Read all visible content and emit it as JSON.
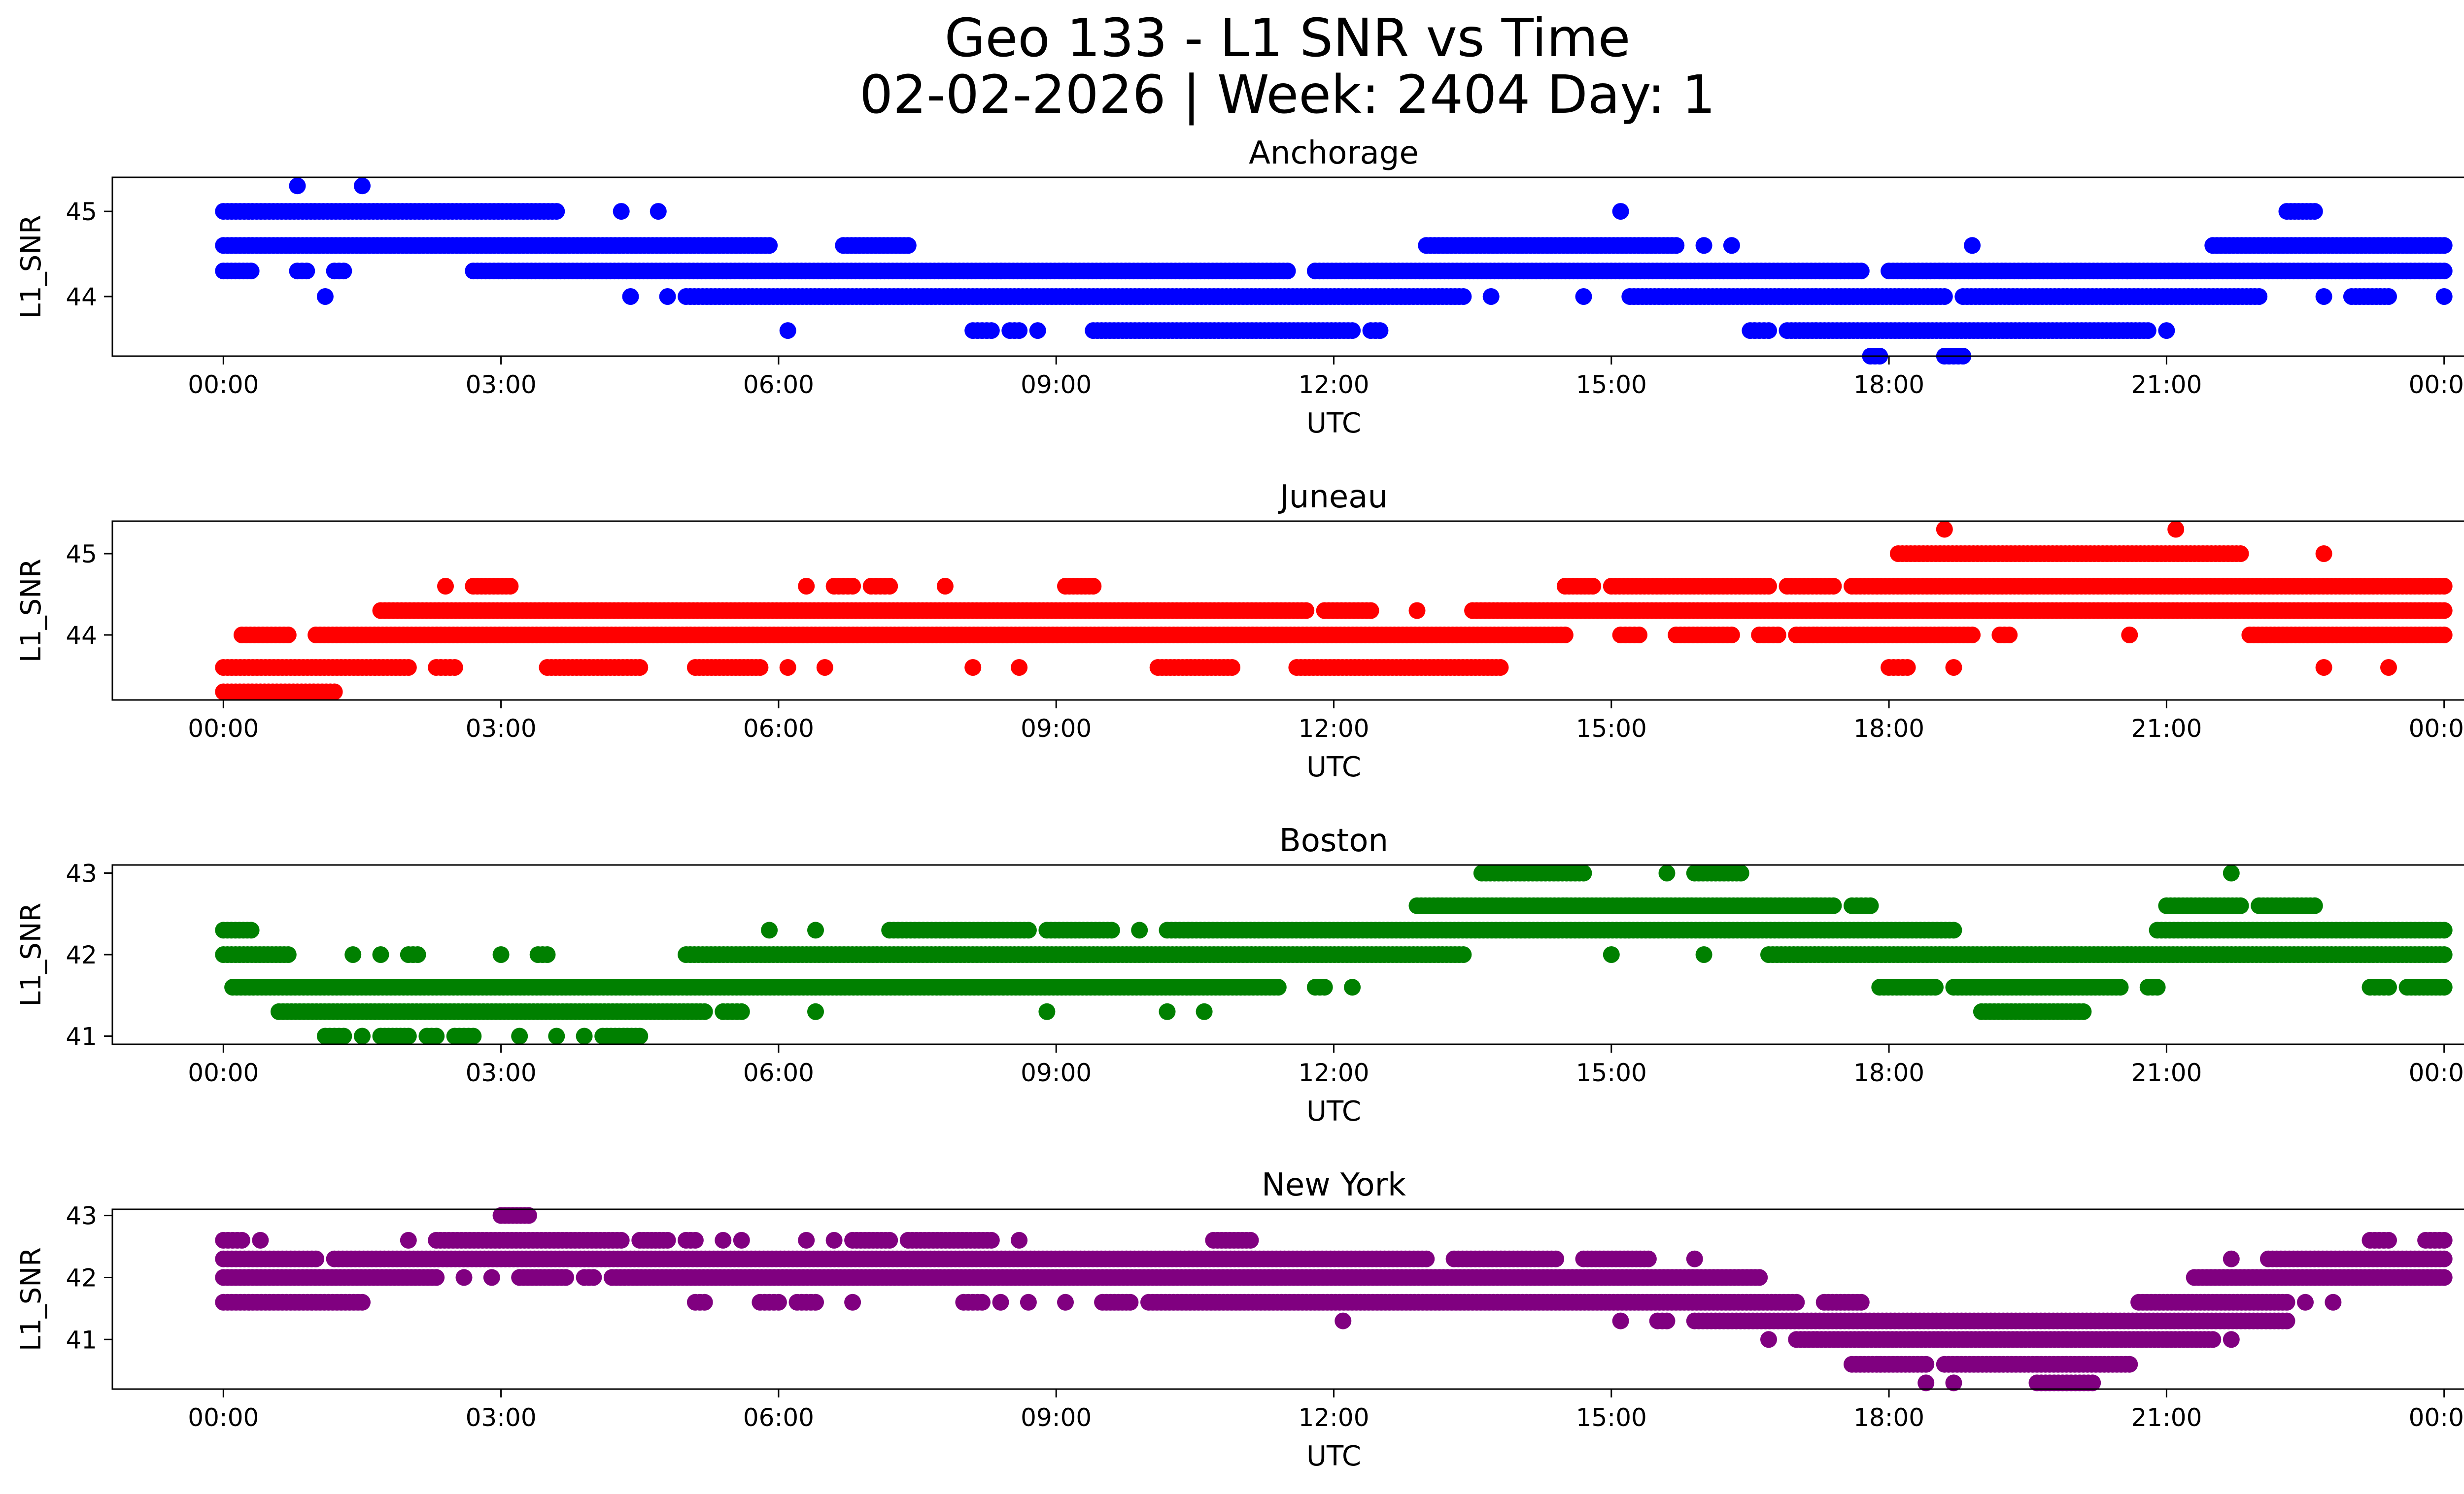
{
  "figure": {
    "title_line1": "Geo 133 - L1 SNR vs Time",
    "title_line2": "02-02-2026 | Week: 2404 Day: 1"
  },
  "chart_data": [
    {
      "type": "scatter",
      "title": "Anchorage",
      "xlabel": "UTC",
      "ylabel": "L1_SNR",
      "color": "#0000ff",
      "xlim_hours": [
        -1.2,
        25.2
      ],
      "ylim": [
        43.3,
        45.4
      ],
      "xticks": [
        0,
        3,
        6,
        9,
        12,
        15,
        18,
        21,
        24
      ],
      "xtick_labels": [
        "00:00",
        "03:00",
        "06:00",
        "09:00",
        "12:00",
        "15:00",
        "18:00",
        "21:00",
        "00:00"
      ],
      "yticks": [
        44,
        45
      ],
      "ytick_labels": [
        "44",
        "45"
      ],
      "runs": [
        [
          45.0,
          0.0,
          3.6
        ],
        [
          44.6,
          0.0,
          5.9
        ],
        [
          44.3,
          0.0,
          0.3
        ],
        [
          44.3,
          0.8,
          0.9
        ],
        [
          44.3,
          1.2,
          1.3
        ],
        [
          44.3,
          2.7,
          11.5
        ],
        [
          44.3,
          11.8,
          17.7
        ],
        [
          44.3,
          18.0,
          24.0
        ],
        [
          44.0,
          1.1,
          1.1
        ],
        [
          44.0,
          4.4,
          4.4
        ],
        [
          44.0,
          4.8,
          4.8
        ],
        [
          44.0,
          5.0,
          13.4
        ],
        [
          44.0,
          13.7,
          13.7
        ],
        [
          44.0,
          14.7,
          14.7
        ],
        [
          44.0,
          15.2,
          18.6
        ],
        [
          44.0,
          18.8,
          22.0
        ],
        [
          44.0,
          22.7,
          22.7
        ],
        [
          44.0,
          23.0,
          23.4
        ],
        [
          44.0,
          24.0,
          24.0
        ],
        [
          43.6,
          6.1,
          6.1
        ],
        [
          43.6,
          8.1,
          8.3
        ],
        [
          43.6,
          8.5,
          8.6
        ],
        [
          43.6,
          8.8,
          8.8
        ],
        [
          43.6,
          9.4,
          12.2
        ],
        [
          43.6,
          12.4,
          12.5
        ],
        [
          43.6,
          16.5,
          16.7
        ],
        [
          43.6,
          16.9,
          20.8
        ],
        [
          43.6,
          21.0,
          21.0
        ],
        [
          43.3,
          17.8,
          17.9
        ],
        [
          43.3,
          18.6,
          18.8
        ],
        [
          45.3,
          0.8,
          0.8
        ],
        [
          45.3,
          1.5,
          1.5
        ],
        [
          45.0,
          4.3,
          4.3
        ],
        [
          45.0,
          4.7,
          4.7
        ],
        [
          45.0,
          15.1,
          15.1
        ],
        [
          45.0,
          22.3,
          22.6
        ],
        [
          44.6,
          6.7,
          7.4
        ],
        [
          44.6,
          13.0,
          15.7
        ],
        [
          44.6,
          16.0,
          16.0
        ],
        [
          44.6,
          16.3,
          16.3
        ],
        [
          44.6,
          18.9,
          18.9
        ],
        [
          44.6,
          21.5,
          24.0
        ]
      ]
    },
    {
      "type": "scatter",
      "title": "Juneau",
      "xlabel": "UTC",
      "ylabel": "L1_SNR",
      "color": "#ff0000",
      "xlim_hours": [
        -1.2,
        25.2
      ],
      "ylim": [
        43.2,
        45.4
      ],
      "xticks": [
        0,
        3,
        6,
        9,
        12,
        15,
        18,
        21,
        24
      ],
      "xtick_labels": [
        "00:00",
        "03:00",
        "06:00",
        "09:00",
        "12:00",
        "15:00",
        "18:00",
        "21:00",
        "00:00"
      ],
      "yticks": [
        44,
        45
      ],
      "ytick_labels": [
        "44",
        "45"
      ],
      "runs": [
        [
          43.3,
          0.0,
          1.2
        ],
        [
          43.6,
          0.0,
          2.0
        ],
        [
          43.6,
          2.3,
          2.5
        ],
        [
          43.6,
          3.5,
          4.5
        ],
        [
          43.6,
          5.1,
          5.8
        ],
        [
          43.6,
          6.1,
          6.1
        ],
        [
          43.6,
          6.5,
          6.5
        ],
        [
          43.6,
          8.1,
          8.1
        ],
        [
          43.6,
          8.6,
          8.6
        ],
        [
          43.6,
          10.1,
          10.9
        ],
        [
          43.6,
          11.6,
          13.8
        ],
        [
          43.6,
          18.0,
          18.2
        ],
        [
          43.6,
          18.7,
          18.7
        ],
        [
          43.6,
          22.7,
          22.7
        ],
        [
          43.6,
          23.4,
          23.4
        ],
        [
          44.0,
          0.2,
          0.7
        ],
        [
          44.0,
          1.0,
          14.5
        ],
        [
          44.0,
          15.1,
          15.3
        ],
        [
          44.0,
          15.7,
          16.3
        ],
        [
          44.0,
          16.6,
          16.8
        ],
        [
          44.0,
          17.0,
          18.9
        ],
        [
          44.0,
          19.2,
          19.3
        ],
        [
          44.0,
          20.6,
          20.6
        ],
        [
          44.0,
          21.9,
          24.0
        ],
        [
          44.3,
          1.7,
          11.7
        ],
        [
          44.3,
          11.9,
          12.4
        ],
        [
          44.3,
          12.9,
          12.9
        ],
        [
          44.3,
          13.5,
          24.0
        ],
        [
          44.6,
          2.4,
          2.4
        ],
        [
          44.6,
          2.7,
          3.1
        ],
        [
          44.6,
          6.3,
          6.3
        ],
        [
          44.6,
          6.6,
          6.8
        ],
        [
          44.6,
          7.0,
          7.2
        ],
        [
          44.6,
          7.8,
          7.8
        ],
        [
          44.6,
          9.1,
          9.4
        ],
        [
          44.6,
          14.5,
          14.8
        ],
        [
          44.6,
          15.0,
          16.7
        ],
        [
          44.6,
          16.9,
          17.4
        ],
        [
          44.6,
          17.6,
          24.0
        ],
        [
          45.0,
          18.1,
          21.8
        ],
        [
          45.0,
          22.7,
          22.7
        ],
        [
          45.3,
          18.6,
          18.6
        ],
        [
          45.3,
          21.1,
          21.1
        ]
      ]
    },
    {
      "type": "scatter",
      "title": "Boston",
      "xlabel": "UTC",
      "ylabel": "L1_SNR",
      "color": "#008000",
      "xlim_hours": [
        -1.2,
        25.2
      ],
      "ylim": [
        40.9,
        43.1
      ],
      "xticks": [
        0,
        3,
        6,
        9,
        12,
        15,
        18,
        21,
        24
      ],
      "xtick_labels": [
        "00:00",
        "03:00",
        "06:00",
        "09:00",
        "12:00",
        "15:00",
        "18:00",
        "21:00",
        "00:00"
      ],
      "yticks": [
        41,
        42,
        43
      ],
      "ytick_labels": [
        "41",
        "42",
        "43"
      ],
      "runs": [
        [
          42.3,
          0.0,
          0.3
        ],
        [
          42.0,
          0.0,
          0.7
        ],
        [
          42.0,
          1.4,
          1.4
        ],
        [
          42.0,
          1.7,
          1.7
        ],
        [
          42.0,
          2.0,
          2.1
        ],
        [
          42.0,
          3.0,
          3.0
        ],
        [
          42.0,
          3.4,
          3.5
        ],
        [
          41.6,
          0.1,
          11.4
        ],
        [
          41.3,
          0.6,
          5.2
        ],
        [
          41.0,
          1.1,
          1.3
        ],
        [
          41.0,
          1.5,
          1.5
        ],
        [
          41.0,
          1.7,
          2.0
        ],
        [
          41.0,
          2.2,
          2.3
        ],
        [
          41.0,
          2.5,
          2.7
        ],
        [
          41.0,
          3.2,
          3.2
        ],
        [
          41.0,
          3.6,
          3.6
        ],
        [
          41.0,
          3.9,
          3.9
        ],
        [
          41.0,
          4.1,
          4.5
        ],
        [
          41.3,
          5.4,
          5.6
        ],
        [
          41.3,
          6.4,
          6.4
        ],
        [
          41.3,
          8.9,
          8.9
        ],
        [
          41.3,
          10.2,
          10.2
        ],
        [
          41.3,
          10.6,
          10.6
        ],
        [
          41.6,
          11.8,
          11.9
        ],
        [
          41.6,
          12.2,
          12.2
        ],
        [
          42.0,
          5.0,
          13.4
        ],
        [
          42.0,
          15.0,
          15.0
        ],
        [
          42.0,
          16.0,
          16.0
        ],
        [
          42.0,
          16.7,
          24.0
        ],
        [
          42.3,
          5.9,
          5.9
        ],
        [
          42.3,
          6.4,
          6.4
        ],
        [
          42.3,
          7.2,
          8.7
        ],
        [
          42.3,
          8.9,
          9.6
        ],
        [
          42.3,
          9.9,
          9.9
        ],
        [
          42.3,
          10.2,
          18.7
        ],
        [
          42.3,
          20.9,
          24.0
        ],
        [
          42.6,
          12.9,
          17.4
        ],
        [
          42.6,
          17.6,
          17.8
        ],
        [
          42.6,
          21.0,
          21.8
        ],
        [
          42.6,
          22.0,
          22.6
        ],
        [
          43.0,
          13.6,
          14.7
        ],
        [
          43.0,
          15.6,
          15.6
        ],
        [
          43.0,
          15.9,
          16.4
        ],
        [
          43.0,
          21.7,
          21.7
        ],
        [
          41.6,
          17.9,
          18.5
        ],
        [
          41.6,
          18.7,
          20.5
        ],
        [
          41.6,
          20.8,
          20.9
        ],
        [
          41.6,
          23.2,
          23.4
        ],
        [
          41.6,
          23.6,
          24.0
        ],
        [
          41.3,
          19.0,
          20.1
        ]
      ]
    },
    {
      "type": "scatter",
      "title": "New York",
      "xlabel": "UTC",
      "ylabel": "L1_SNR",
      "color": "#800080",
      "xlim_hours": [
        -1.2,
        25.2
      ],
      "ylim": [
        40.2,
        43.1
      ],
      "xticks": [
        0,
        3,
        6,
        9,
        12,
        15,
        18,
        21,
        24
      ],
      "xtick_labels": [
        "00:00",
        "03:00",
        "06:00",
        "09:00",
        "12:00",
        "15:00",
        "18:00",
        "21:00",
        "00:00"
      ],
      "yticks": [
        41,
        42,
        43
      ],
      "ytick_labels": [
        "41",
        "42",
        "43"
      ],
      "runs": [
        [
          42.6,
          0.0,
          0.2
        ],
        [
          42.6,
          0.4,
          0.4
        ],
        [
          42.6,
          2.0,
          2.0
        ],
        [
          42.6,
          2.3,
          4.3
        ],
        [
          42.6,
          4.5,
          4.8
        ],
        [
          42.6,
          5.0,
          5.1
        ],
        [
          42.6,
          5.4,
          5.4
        ],
        [
          42.6,
          5.6,
          5.6
        ],
        [
          42.6,
          6.3,
          6.3
        ],
        [
          42.6,
          6.6,
          6.6
        ],
        [
          42.6,
          6.8,
          7.2
        ],
        [
          42.6,
          7.4,
          8.3
        ],
        [
          42.6,
          8.6,
          8.6
        ],
        [
          42.6,
          10.7,
          11.1
        ],
        [
          42.6,
          23.2,
          23.4
        ],
        [
          42.6,
          23.8,
          24.0
        ],
        [
          42.3,
          0.0,
          1.0
        ],
        [
          42.3,
          1.2,
          13.0
        ],
        [
          42.3,
          13.3,
          14.4
        ],
        [
          42.3,
          14.7,
          15.4
        ],
        [
          42.3,
          15.9,
          15.9
        ],
        [
          42.3,
          21.7,
          21.7
        ],
        [
          42.3,
          22.1,
          24.0
        ],
        [
          42.0,
          0.0,
          2.3
        ],
        [
          42.0,
          2.6,
          2.6
        ],
        [
          42.0,
          2.9,
          2.9
        ],
        [
          42.0,
          3.2,
          3.7
        ],
        [
          42.0,
          3.9,
          4.0
        ],
        [
          42.0,
          4.2,
          16.6
        ],
        [
          42.0,
          21.3,
          24.0
        ],
        [
          41.6,
          0.0,
          1.5
        ],
        [
          41.6,
          5.1,
          5.2
        ],
        [
          41.6,
          5.8,
          6.0
        ],
        [
          41.6,
          6.2,
          6.4
        ],
        [
          41.6,
          6.8,
          6.8
        ],
        [
          41.6,
          8.0,
          8.2
        ],
        [
          41.6,
          8.4,
          8.4
        ],
        [
          41.6,
          8.7,
          8.7
        ],
        [
          41.6,
          9.1,
          9.1
        ],
        [
          41.6,
          9.5,
          9.8
        ],
        [
          41.6,
          10.0,
          17.0
        ],
        [
          41.6,
          17.3,
          17.7
        ],
        [
          41.6,
          20.7,
          22.3
        ],
        [
          41.6,
          22.5,
          22.5
        ],
        [
          41.6,
          22.8,
          22.8
        ],
        [
          43.0,
          3.0,
          3.3
        ],
        [
          41.3,
          12.1,
          12.1
        ],
        [
          41.3,
          15.1,
          15.1
        ],
        [
          41.3,
          15.5,
          15.6
        ],
        [
          41.3,
          15.9,
          22.3
        ],
        [
          41.0,
          16.7,
          16.7
        ],
        [
          41.0,
          17.0,
          21.5
        ],
        [
          41.0,
          21.7,
          21.7
        ],
        [
          40.6,
          17.6,
          18.4
        ],
        [
          40.6,
          18.6,
          20.6
        ],
        [
          40.3,
          18.4,
          18.4
        ],
        [
          40.3,
          18.7,
          18.7
        ],
        [
          40.3,
          19.6,
          20.2
        ]
      ]
    }
  ]
}
